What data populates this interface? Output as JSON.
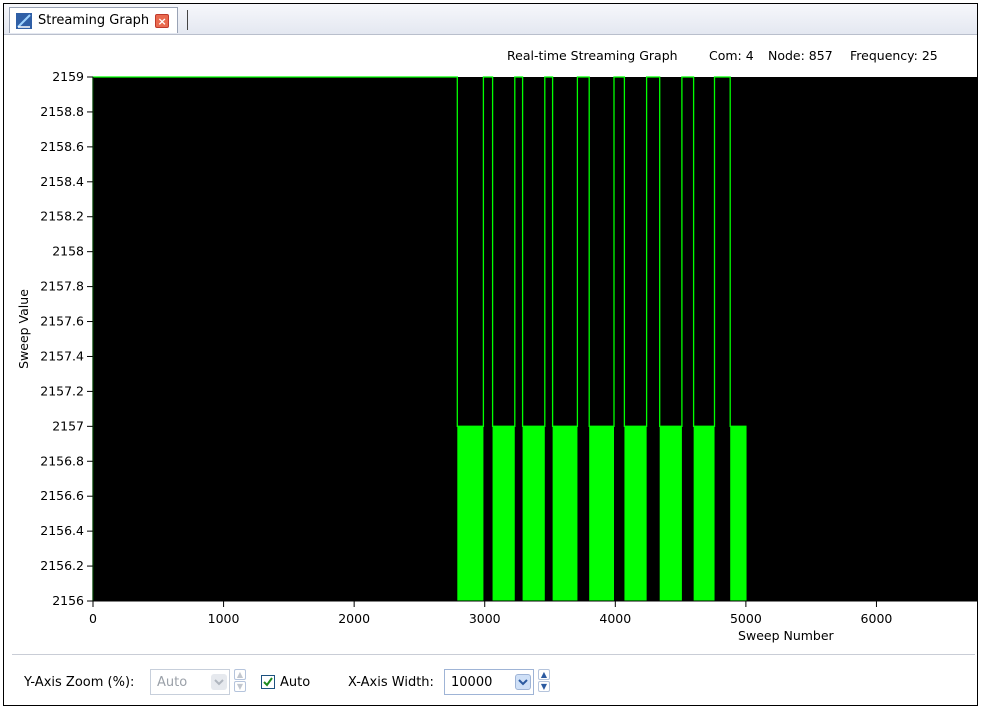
{
  "tab": {
    "title": "Streaming Graph"
  },
  "header": {
    "chart_title": "Real-time Streaming Graph",
    "com": "Com: 4",
    "node": "Node: 857",
    "frequency": "Frequency: 25"
  },
  "chart_data": {
    "type": "line",
    "xlabel": "Sweep Number",
    "ylabel": "Sweep Value",
    "xlim": [
      0,
      6770
    ],
    "ylim": [
      2156,
      2159
    ],
    "x_ticks": [
      0,
      1000,
      2000,
      3000,
      4000,
      5000,
      6000
    ],
    "y_ticks": [
      2156,
      2156.2,
      2156.4,
      2156.6,
      2156.8,
      2157,
      2157.2,
      2157.4,
      2157.6,
      2157.8,
      2158,
      2158.2,
      2158.4,
      2158.6,
      2158.8,
      2159
    ],
    "y_tick_labels": [
      "2156",
      "2156.2",
      "2156.4",
      "2156.6",
      "2156.8",
      "2157",
      "2157.2",
      "2157.4",
      "2157.6",
      "2157.8",
      "2158",
      "2158.2",
      "2158.4",
      "2158.6",
      "2158.8",
      "2159"
    ],
    "background": "#000000",
    "line_color": "#00ff00",
    "series": [
      {
        "values_description_none": "",
        "points": [
          [
            0,
            2156
          ],
          [
            0,
            2159
          ],
          [
            2790,
            2159
          ],
          [
            2790,
            2157
          ],
          [
            2990,
            2157
          ],
          [
            2990,
            2159
          ],
          [
            3060,
            2159
          ],
          [
            3060,
            2157
          ],
          [
            3230,
            2157
          ],
          [
            3230,
            2159
          ],
          [
            3290,
            2159
          ],
          [
            3290,
            2157
          ],
          [
            3460,
            2157
          ],
          [
            3460,
            2159
          ],
          [
            3520,
            2159
          ],
          [
            3520,
            2157
          ],
          [
            3710,
            2157
          ],
          [
            3710,
            2159
          ],
          [
            3800,
            2159
          ],
          [
            3800,
            2157
          ],
          [
            3990,
            2157
          ],
          [
            3990,
            2159
          ],
          [
            4070,
            2159
          ],
          [
            4070,
            2157
          ],
          [
            4240,
            2157
          ],
          [
            4240,
            2159
          ],
          [
            4340,
            2159
          ],
          [
            4340,
            2157
          ],
          [
            4510,
            2157
          ],
          [
            4510,
            2159
          ],
          [
            4600,
            2159
          ],
          [
            4600,
            2157
          ],
          [
            4760,
            2157
          ],
          [
            4760,
            2159
          ],
          [
            4880,
            2159
          ],
          [
            4880,
            2157
          ],
          [
            5000,
            2157
          ],
          [
            5000,
            2156
          ]
        ],
        "filled_segments": [
          [
            2790,
            2990
          ],
          [
            3060,
            3230
          ],
          [
            3290,
            3460
          ],
          [
            3520,
            3710
          ],
          [
            3800,
            3990
          ],
          [
            4070,
            4240
          ],
          [
            4340,
            4510
          ],
          [
            4600,
            4760
          ],
          [
            4880,
            5000
          ]
        ],
        "fill_value": 2157
      }
    ]
  },
  "footer": {
    "y_zoom_label": "Y-Axis Zoom (%):",
    "y_zoom_value": "Auto",
    "auto_label": "Auto",
    "x_width_label": "X-Axis Width:",
    "x_width_value": "10000"
  }
}
